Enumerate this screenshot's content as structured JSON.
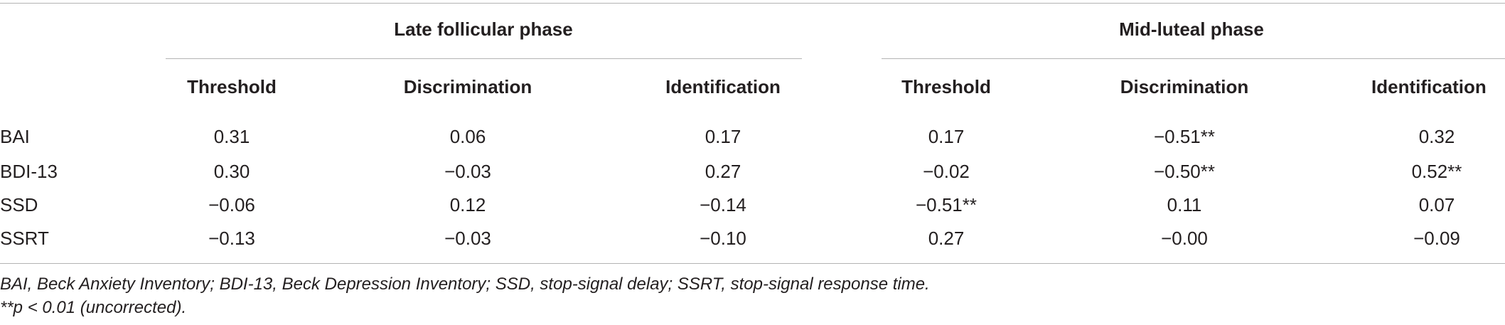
{
  "table": {
    "groups": [
      {
        "label": "Late follicular phase"
      },
      {
        "label": "Mid-luteal phase"
      }
    ],
    "columns": [
      "Threshold",
      "Discrimination",
      "Identification",
      "Threshold",
      "Discrimination",
      "Identification"
    ],
    "rows": [
      {
        "label": "BAI",
        "cells": [
          "0.31",
          "0.06",
          "0.17",
          "0.17",
          "−0.51**",
          "0.32"
        ]
      },
      {
        "label": "BDI-13",
        "cells": [
          "0.30",
          "−0.03",
          "0.27",
          "−0.02",
          "−0.50**",
          "0.52**"
        ]
      },
      {
        "label": "SSD",
        "cells": [
          "−0.06",
          "0.12",
          "−0.14",
          "−0.51**",
          "0.11",
          "0.07"
        ]
      },
      {
        "label": "SSRT",
        "cells": [
          "−0.13",
          "−0.03",
          "−0.10",
          "0.27",
          "−0.00",
          "−0.09"
        ]
      }
    ]
  },
  "footnotes": {
    "abbreviations": "BAI, Beck Anxiety Inventory; BDI-13, Beck Depression Inventory; SSD, stop-signal delay; SSRT, stop-signal response time.",
    "significance": "**p < 0.01 (uncorrected)."
  }
}
